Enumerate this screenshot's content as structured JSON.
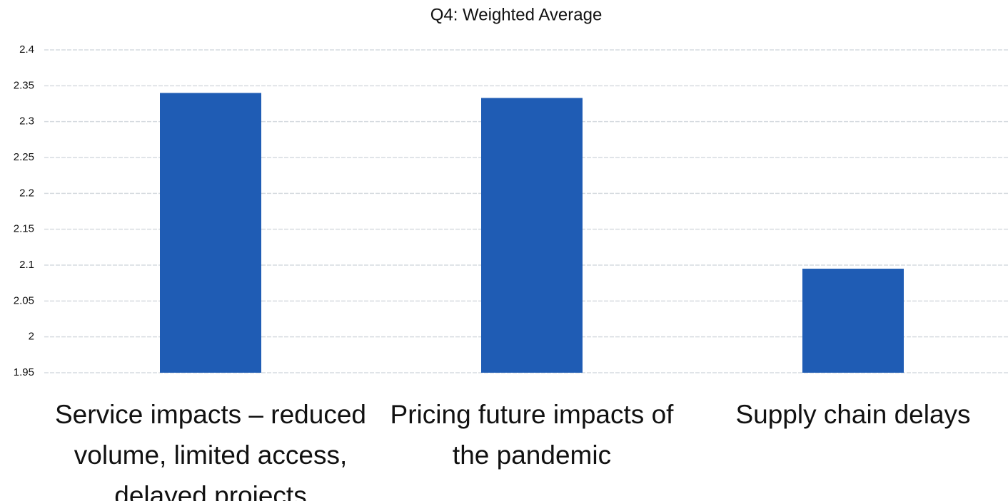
{
  "chart_data": {
    "type": "bar",
    "title": "Q4: Weighted Average",
    "categories": [
      "Service impacts – reduced volume, limited access, delayed projects",
      "Pricing future impacts of the pandemic",
      "Supply chain delays"
    ],
    "values": [
      2.34,
      2.333,
      2.095
    ],
    "color": "#1f5cb4",
    "ylim": [
      1.95,
      2.4
    ],
    "yticks": [
      1.95,
      2,
      2.05,
      2.1,
      2.15,
      2.2,
      2.25,
      2.3,
      2.35,
      2.4
    ],
    "grid": true
  }
}
